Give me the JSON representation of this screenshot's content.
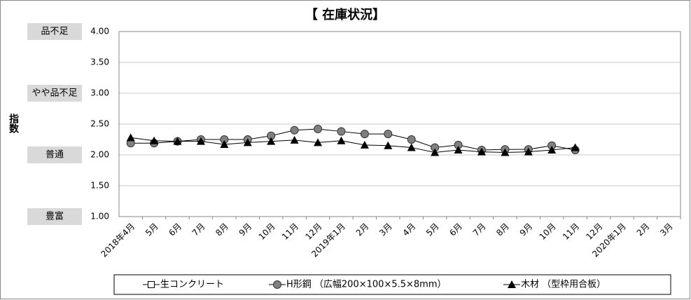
{
  "chart_data": {
    "type": "line",
    "title": "【 在庫状況】",
    "y_label": "指数",
    "categories": [
      "2018年4月",
      "5月",
      "6月",
      "7月",
      "8月",
      "9月",
      "10月",
      "11月",
      "12月",
      "2019年1月",
      "2月",
      "3月",
      "4月",
      "5月",
      "6月",
      "7月",
      "8月",
      "9月",
      "10月",
      "11月",
      "12月",
      "2020年1月",
      "2月",
      "3月"
    ],
    "series": [
      {
        "name": "生コンクリート",
        "color": "#000000",
        "marker": "square",
        "values": [
          null,
          null,
          null,
          null,
          null,
          null,
          null,
          null,
          null,
          null,
          null,
          null,
          null,
          null,
          null,
          null,
          null,
          null,
          null,
          null,
          null,
          null,
          null,
          null
        ]
      },
      {
        "name": "H形鋼 （広幅200×100×5.5×8mm）",
        "color": "#808080",
        "marker": "circle",
        "values": [
          2.19,
          2.19,
          2.22,
          2.25,
          2.25,
          2.25,
          2.31,
          2.4,
          2.42,
          2.38,
          2.34,
          2.34,
          2.25,
          2.12,
          2.16,
          2.08,
          2.09,
          2.09,
          2.15,
          2.08,
          null,
          null,
          null,
          null
        ]
      },
      {
        "name": "木材 （型枠用合板）",
        "color": "#000000",
        "marker": "triangle",
        "values": [
          2.28,
          2.23,
          2.22,
          2.22,
          2.17,
          2.2,
          2.22,
          2.24,
          2.2,
          2.23,
          2.16,
          2.15,
          2.12,
          2.04,
          2.08,
          2.05,
          2.04,
          2.05,
          2.08,
          2.12,
          null,
          null,
          null,
          null
        ]
      }
    ],
    "ylim": [
      1,
      4
    ],
    "yticks": [
      {
        "value": 1,
        "label": "1.00"
      },
      {
        "value": 1.5,
        "label": "1.50"
      },
      {
        "value": 2,
        "label": "2.00"
      },
      {
        "value": 2.5,
        "label": "2.50"
      },
      {
        "value": 3,
        "label": "3.00"
      },
      {
        "value": 3.5,
        "label": "3.50"
      },
      {
        "value": 4,
        "label": "4.00"
      }
    ],
    "level_labels": [
      {
        "value": 4,
        "label": "品不足"
      },
      {
        "value": 3,
        "label": "やや品不足"
      },
      {
        "value": 2,
        "label": "普通"
      },
      {
        "value": 1,
        "label": "豊富"
      }
    ],
    "grid": true
  }
}
